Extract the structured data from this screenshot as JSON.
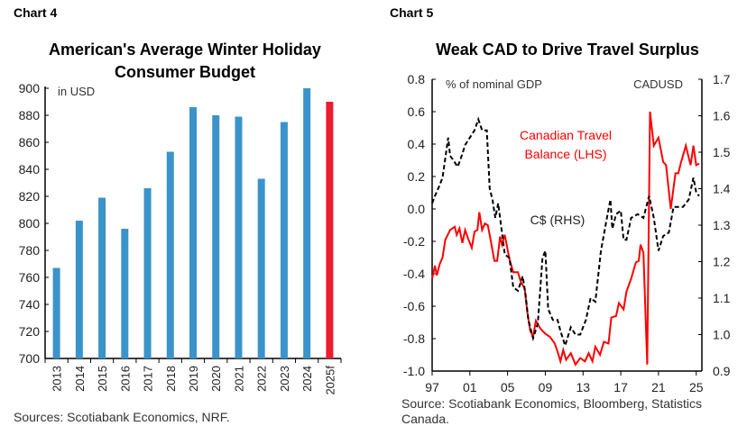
{
  "chart_data": [
    {
      "label": "Chart 4",
      "type": "bar",
      "title": "American's Average Winter Holiday Consumer Budget",
      "title_lines": [
        "American's Average Winter Holiday",
        "Consumer Budget"
      ],
      "unit_label": "in USD",
      "categories": [
        "2013",
        "2014",
        "2015",
        "2016",
        "2017",
        "2018",
        "2019",
        "2020",
        "2021",
        "2022",
        "2023",
        "2024",
        "2025f"
      ],
      "values": [
        767,
        802,
        819,
        796,
        826,
        853,
        886,
        880,
        879,
        833,
        875,
        900,
        890
      ],
      "colors": [
        "#3a94c9",
        "#3a94c9",
        "#3a94c9",
        "#3a94c9",
        "#3a94c9",
        "#3a94c9",
        "#3a94c9",
        "#3a94c9",
        "#3a94c9",
        "#3a94c9",
        "#3a94c9",
        "#3a94c9",
        "#ed1c2e"
      ],
      "ylim": [
        700,
        900
      ],
      "yticks": [
        700,
        720,
        740,
        760,
        780,
        800,
        820,
        840,
        860,
        880,
        900
      ],
      "grid": false,
      "source": "Sources: Scotiabank Economics, NRF."
    },
    {
      "label": "Chart 5",
      "type": "line",
      "title": "Weak CAD to Drive Travel Surplus",
      "left_axis_label": "% of nominal GDP",
      "right_axis_label": "CADUSD",
      "ylim": [
        -1.0,
        0.8
      ],
      "yticks": [
        "0.8",
        "0.6",
        "0.4",
        "0.2",
        "0.0",
        "-0.2",
        "-0.4",
        "-0.6",
        "-0.8",
        "-1.0"
      ],
      "y2lim": [
        0.9,
        1.7
      ],
      "y2ticks": [
        "1.7",
        "1.6",
        "1.5",
        "1.4",
        "1.3",
        "1.2",
        "1.1",
        "1.0",
        "0.9"
      ],
      "xlim": [
        1997,
        2025.6
      ],
      "xticks": [
        {
          "value": 1997,
          "label": "97"
        },
        {
          "value": 2001,
          "label": "01"
        },
        {
          "value": 2005,
          "label": "05"
        },
        {
          "value": 2009,
          "label": "09"
        },
        {
          "value": 2013,
          "label": "13"
        },
        {
          "value": 2017,
          "label": "17"
        },
        {
          "value": 2021,
          "label": "21"
        },
        {
          "value": 2025,
          "label": "25"
        }
      ],
      "grid": false,
      "series": [
        {
          "name": "Canadian Travel Balance (LHS)",
          "name_lines": [
            "Canadian Travel",
            "Balance (LHS)"
          ],
          "axis": "left",
          "color": "#ff0000",
          "style": "solid",
          "points": [
            [
              1997.0,
              -0.43
            ],
            [
              1997.3,
              -0.35
            ],
            [
              1997.5,
              -0.41
            ],
            [
              1997.8,
              -0.34
            ],
            [
              1998.1,
              -0.3
            ],
            [
              1998.4,
              -0.19
            ],
            [
              1998.9,
              -0.13
            ],
            [
              1999.4,
              -0.11
            ],
            [
              1999.6,
              -0.16
            ],
            [
              1999.9,
              -0.12
            ],
            [
              2000.2,
              -0.21
            ],
            [
              2000.5,
              -0.13
            ],
            [
              2000.8,
              -0.18
            ],
            [
              2001.2,
              -0.24
            ],
            [
              2001.5,
              -0.14
            ],
            [
              2001.8,
              -0.13
            ],
            [
              2002.0,
              -0.02
            ],
            [
              2002.3,
              -0.13
            ],
            [
              2002.6,
              -0.09
            ],
            [
              2002.9,
              -0.1
            ],
            [
              2003.2,
              -0.19
            ],
            [
              2003.6,
              -0.32
            ],
            [
              2003.9,
              -0.32
            ],
            [
              2004.2,
              -0.17
            ],
            [
              2004.4,
              -0.22
            ],
            [
              2004.7,
              -0.16
            ],
            [
              2005.2,
              -0.31
            ],
            [
              2005.6,
              -0.39
            ],
            [
              2006.1,
              -0.39
            ],
            [
              2006.4,
              -0.45
            ],
            [
              2006.8,
              -0.49
            ],
            [
              2007.1,
              -0.64
            ],
            [
              2007.4,
              -0.75
            ],
            [
              2007.7,
              -0.79
            ],
            [
              2008.0,
              -0.69
            ],
            [
              2008.5,
              -0.74
            ],
            [
              2009.0,
              -0.77
            ],
            [
              2009.5,
              -0.79
            ],
            [
              2010.0,
              -0.83
            ],
            [
              2010.3,
              -0.88
            ],
            [
              2010.6,
              -0.94
            ],
            [
              2010.9,
              -0.87
            ],
            [
              2011.2,
              -0.93
            ],
            [
              2011.7,
              -0.89
            ],
            [
              2012.2,
              -0.96
            ],
            [
              2012.7,
              -0.92
            ],
            [
              2013.2,
              -0.94
            ],
            [
              2013.6,
              -0.89
            ],
            [
              2014.0,
              -0.94
            ],
            [
              2014.3,
              -0.85
            ],
            [
              2014.8,
              -0.9
            ],
            [
              2015.2,
              -0.82
            ],
            [
              2015.7,
              -0.83
            ],
            [
              2016.0,
              -0.67
            ],
            [
              2016.5,
              -0.66
            ],
            [
              2016.8,
              -0.58
            ],
            [
              2017.3,
              -0.62
            ],
            [
              2017.6,
              -0.51
            ],
            [
              2018.1,
              -0.43
            ],
            [
              2018.6,
              -0.33
            ],
            [
              2018.9,
              -0.32
            ],
            [
              2019.1,
              -0.22
            ],
            [
              2019.4,
              -0.27
            ],
            [
              2019.8,
              -0.96
            ],
            [
              2020.1,
              0.6
            ],
            [
              2020.5,
              0.39
            ],
            [
              2021.0,
              0.44
            ],
            [
              2021.5,
              0.29
            ],
            [
              2021.8,
              0.27
            ],
            [
              2022.3,
              0.0
            ],
            [
              2022.8,
              0.22
            ],
            [
              2023.1,
              0.22
            ],
            [
              2023.4,
              0.29
            ],
            [
              2023.9,
              0.39
            ],
            [
              2024.4,
              0.27
            ],
            [
              2024.7,
              0.39
            ],
            [
              2025.0,
              0.27
            ],
            [
              2025.3,
              0.28
            ]
          ]
        },
        {
          "name": "C$ (RHS)",
          "axis": "right",
          "color": "#000000",
          "style": "dashed",
          "points": [
            [
              1997.0,
              1.36
            ],
            [
              1997.3,
              1.38
            ],
            [
              1997.8,
              1.41
            ],
            [
              1998.1,
              1.43
            ],
            [
              1998.7,
              1.54
            ],
            [
              1998.9,
              1.49
            ],
            [
              1999.2,
              1.48
            ],
            [
              1999.7,
              1.46
            ],
            [
              2000.0,
              1.48
            ],
            [
              2000.5,
              1.52
            ],
            [
              2001.0,
              1.54
            ],
            [
              2001.5,
              1.56
            ],
            [
              2001.9,
              1.59
            ],
            [
              2002.3,
              1.56
            ],
            [
              2002.8,
              1.56
            ],
            [
              2003.1,
              1.4
            ],
            [
              2003.4,
              1.37
            ],
            [
              2003.7,
              1.32
            ],
            [
              2004.0,
              1.36
            ],
            [
              2004.4,
              1.28
            ],
            [
              2004.7,
              1.22
            ],
            [
              2005.2,
              1.21
            ],
            [
              2005.6,
              1.13
            ],
            [
              2006.1,
              1.12
            ],
            [
              2006.6,
              1.16
            ],
            [
              2006.9,
              1.11
            ],
            [
              2007.2,
              1.04
            ],
            [
              2007.7,
              0.99
            ],
            [
              2008.2,
              1.03
            ],
            [
              2008.7,
              1.21
            ],
            [
              2009.0,
              1.23
            ],
            [
              2009.3,
              1.07
            ],
            [
              2009.8,
              1.04
            ],
            [
              2010.3,
              1.04
            ],
            [
              2010.6,
              1.01
            ],
            [
              2011.1,
              0.97
            ],
            [
              2011.7,
              1.02
            ],
            [
              2012.2,
              1.0
            ],
            [
              2012.7,
              1.0
            ],
            [
              2013.3,
              1.04
            ],
            [
              2013.8,
              1.1
            ],
            [
              2014.3,
              1.09
            ],
            [
              2014.9,
              1.23
            ],
            [
              2015.6,
              1.33
            ],
            [
              2015.9,
              1.37
            ],
            [
              2016.1,
              1.29
            ],
            [
              2016.5,
              1.33
            ],
            [
              2017.0,
              1.34
            ],
            [
              2017.3,
              1.26
            ],
            [
              2017.6,
              1.26
            ],
            [
              2018.1,
              1.32
            ],
            [
              2018.8,
              1.33
            ],
            [
              2019.4,
              1.32
            ],
            [
              2020.0,
              1.38
            ],
            [
              2020.5,
              1.32
            ],
            [
              2021.0,
              1.23
            ],
            [
              2021.5,
              1.27
            ],
            [
              2022.1,
              1.28
            ],
            [
              2022.6,
              1.35
            ],
            [
              2023.1,
              1.35
            ],
            [
              2023.6,
              1.35
            ],
            [
              2024.2,
              1.37
            ],
            [
              2024.7,
              1.43
            ],
            [
              2025.0,
              1.39
            ],
            [
              2025.3,
              1.38
            ]
          ]
        }
      ],
      "source": "Source: Scotiabank Economics, Bloomberg, Statistics Canada.",
      "source_lines": [
        "Source: Scotiabank Economics, Bloomberg, Statistics",
        "Canada."
      ]
    }
  ]
}
